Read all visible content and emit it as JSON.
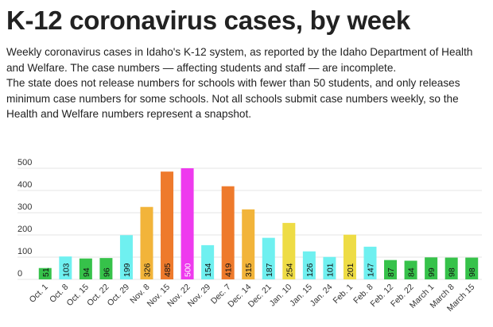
{
  "header": {
    "title": "K-12 coronavirus cases, by week",
    "description_1": "Weekly coronavirus cases in Idaho's K-12 system, as reported by the Idaho Department of Health and Welfare. The case numbers — affecting students and staff — are incomplete.",
    "description_2": "The state does not release numbers for schools with fewer than 50 students, and only releases minimum case numbers for some schools. Not all schools submit case numbers weekly, so the Health and Welfare numbers represent a snapshot."
  },
  "chart_data": {
    "type": "bar",
    "title": "",
    "xlabel": "",
    "ylabel": "",
    "ylim": [
      0,
      500
    ],
    "yticks": [
      0,
      100,
      200,
      300,
      400,
      500
    ],
    "grid": true,
    "categories": [
      "Oct. 1",
      "Oct. 8",
      "Oct. 15",
      "Oct. 22",
      "Oct. 29",
      "Nov. 8",
      "Nov. 15",
      "Nov. 22",
      "Nov. 29",
      "Dec. 7",
      "Dec. 14",
      "Dec. 21",
      "Jan. 10",
      "Jan. 15",
      "Jan. 24",
      "Feb. 1",
      "Feb. 8",
      "Feb. 12",
      "Feb. 22",
      "March 1",
      "March 8",
      "March 15"
    ],
    "values": [
      51,
      103,
      94,
      96,
      199,
      326,
      485,
      500,
      154,
      419,
      315,
      187,
      254,
      126,
      101,
      201,
      147,
      87,
      84,
      99,
      98,
      98
    ],
    "colors": [
      "#36c24a",
      "#6ff0f0",
      "#36c24a",
      "#36c24a",
      "#6ff0f0",
      "#f2b43a",
      "#ee7a2c",
      "#ee3aee",
      "#6ff0f0",
      "#ee7a2c",
      "#f2b43a",
      "#6ff0f0",
      "#eedc45",
      "#6ff0f0",
      "#6ff0f0",
      "#eedc45",
      "#6ff0f0",
      "#36c24a",
      "#36c24a",
      "#36c24a",
      "#36c24a",
      "#36c24a"
    ]
  }
}
